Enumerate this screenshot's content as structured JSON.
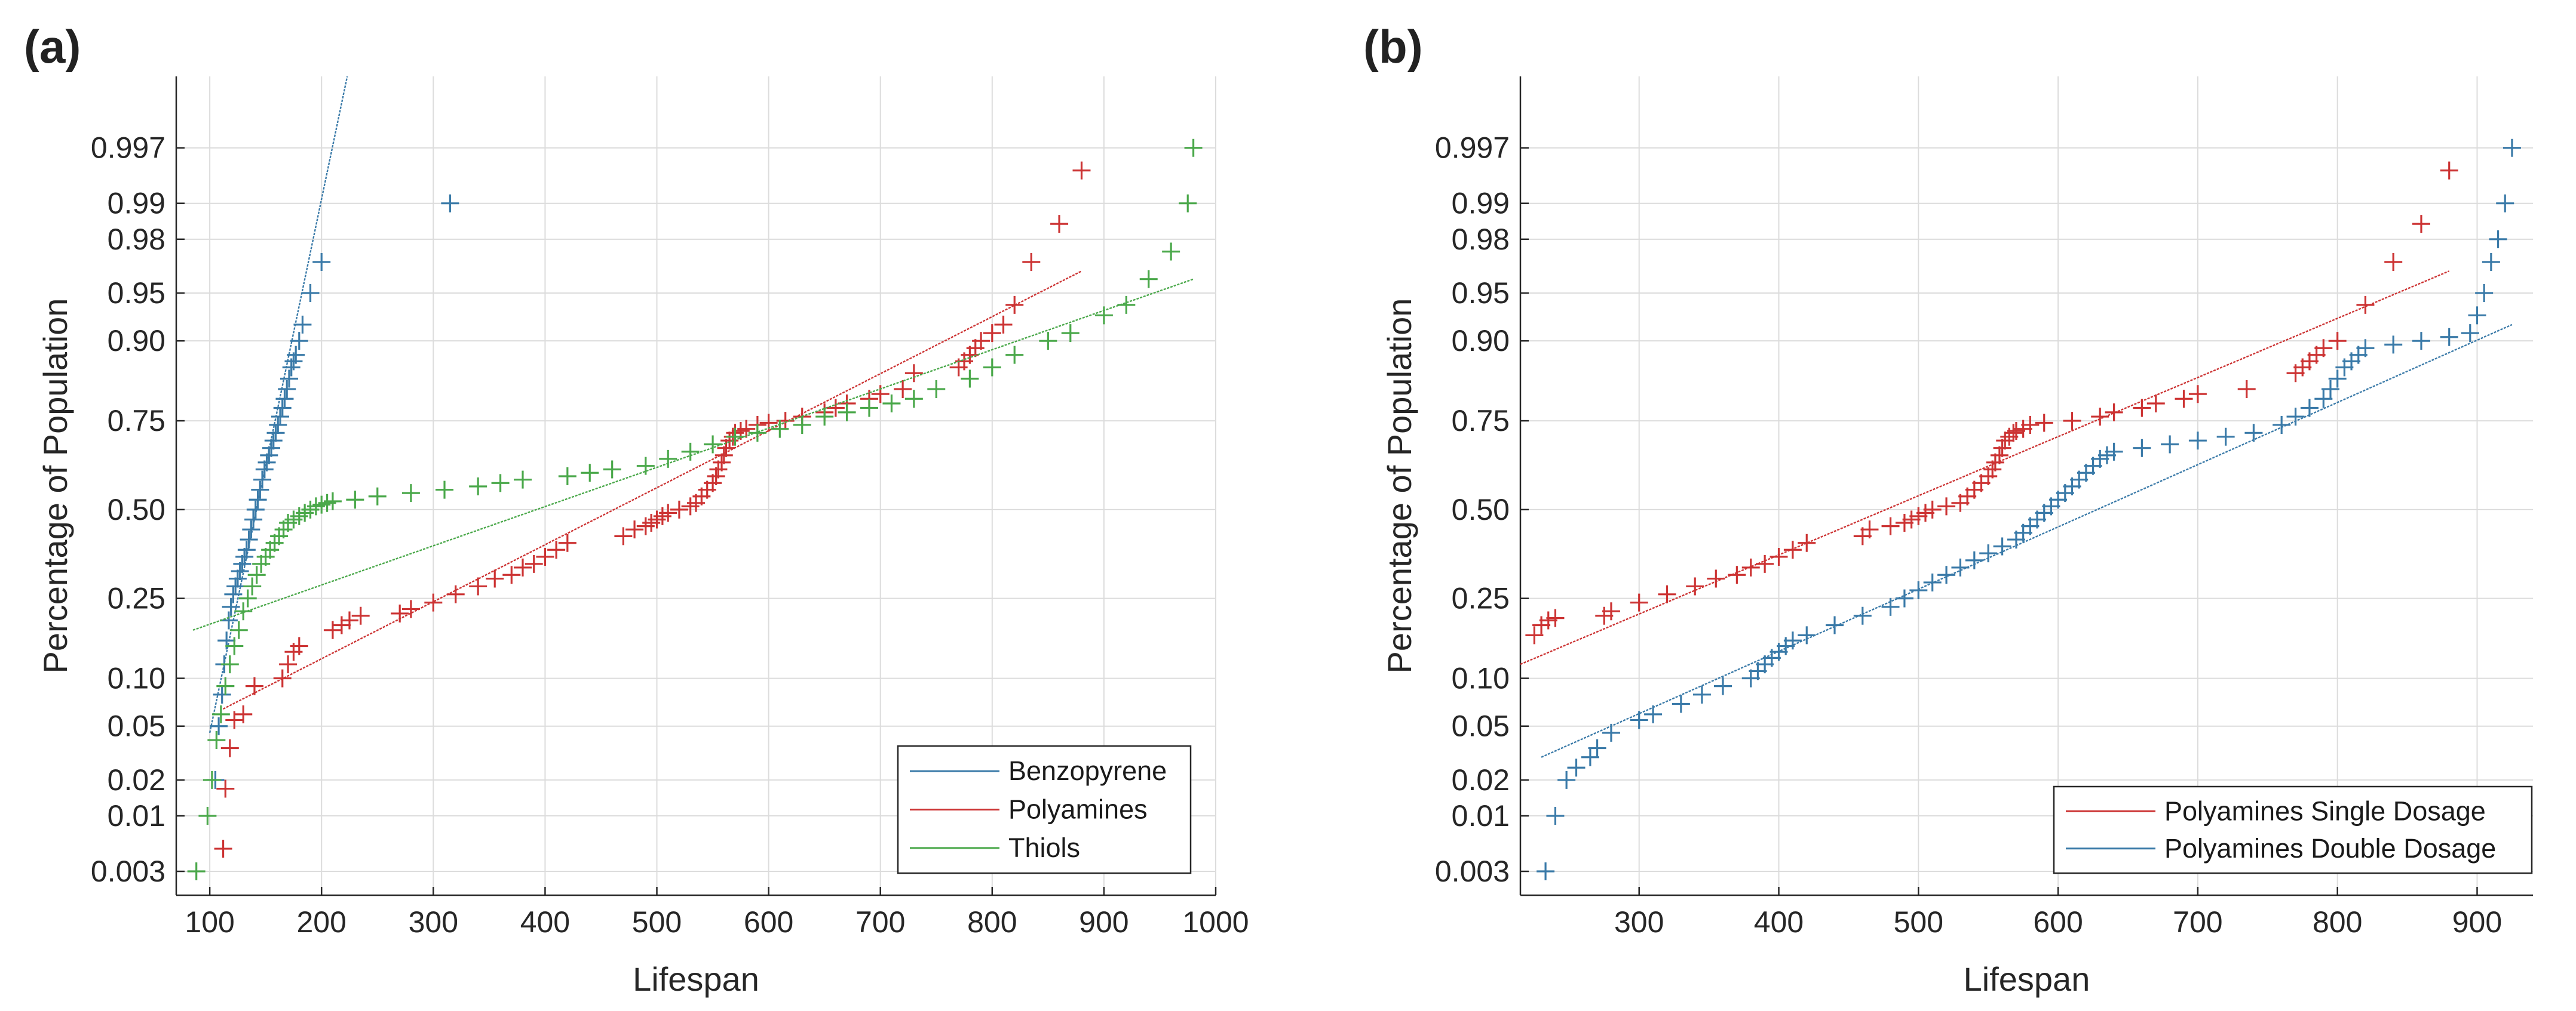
{
  "chart_data": [
    {
      "type": "scatter",
      "panel_label": "(a)",
      "title": "",
      "xlabel": "Lifespan",
      "ylabel": "Percentage of Population",
      "xlim": [
        70,
        1000
      ],
      "x_ticks": [
        100,
        200,
        300,
        400,
        500,
        600,
        700,
        800,
        900,
        1000
      ],
      "x_tick_labels": [
        "100",
        "200",
        "300",
        "400",
        "500",
        "600",
        "700",
        "800",
        "900",
        "1000"
      ],
      "y_scale": "normal-probability",
      "y_ticks": [
        0.003,
        0.01,
        0.02,
        0.05,
        0.1,
        0.25,
        0.5,
        0.75,
        0.9,
        0.95,
        0.98,
        0.99,
        0.997
      ],
      "y_tick_labels": [
        "0.003",
        "0.01",
        "0.02",
        "0.05",
        "0.10",
        "0.25",
        "0.50",
        "0.75",
        "0.90",
        "0.95",
        "0.98",
        "0.99",
        "0.997"
      ],
      "grid": true,
      "legend_position": "bottom-right",
      "series": [
        {
          "name": "Benzopyrene",
          "color": "#3a7aa8",
          "fit_line": {
            "x": [
              100,
              223
            ],
            "p": [
              0.045,
              0.9995
            ]
          },
          "x": [
            105,
            108,
            111,
            113,
            115,
            117,
            119,
            121,
            123,
            125,
            127,
            129,
            131,
            133,
            135,
            137,
            139,
            141,
            143,
            145,
            147,
            149,
            151,
            153,
            155,
            157,
            159,
            161,
            163,
            165,
            167,
            169,
            171,
            173,
            175,
            177,
            180,
            183,
            190,
            200,
            315
          ],
          "p": [
            0.02,
            0.05,
            0.08,
            0.12,
            0.16,
            0.2,
            0.23,
            0.26,
            0.28,
            0.3,
            0.32,
            0.34,
            0.36,
            0.38,
            0.41,
            0.44,
            0.47,
            0.5,
            0.53,
            0.56,
            0.59,
            0.62,
            0.64,
            0.66,
            0.68,
            0.7,
            0.72,
            0.74,
            0.76,
            0.78,
            0.8,
            0.82,
            0.84,
            0.86,
            0.87,
            0.88,
            0.9,
            0.92,
            0.95,
            0.97,
            0.99
          ]
        },
        {
          "name": "Polyamines",
          "color": "#cc3333",
          "fit_line": {
            "x": [
              112,
              880
            ],
            "p": [
              0.065,
              0.965
            ]
          },
          "x": [
            112,
            114,
            118,
            122,
            130,
            140,
            165,
            170,
            175,
            180,
            210,
            218,
            225,
            235,
            270,
            280,
            300,
            320,
            340,
            355,
            370,
            380,
            390,
            400,
            410,
            420,
            470,
            480,
            490,
            495,
            500,
            505,
            510,
            520,
            530,
            535,
            540,
            545,
            550,
            553,
            555,
            558,
            560,
            562,
            565,
            568,
            570,
            575,
            580,
            590,
            600,
            615,
            630,
            650,
            660,
            670,
            690,
            700,
            720,
            730,
            770,
            775,
            780,
            785,
            790,
            800,
            810,
            820,
            835,
            860,
            880
          ],
          "p": [
            0.005,
            0.017,
            0.035,
            0.055,
            0.06,
            0.09,
            0.1,
            0.12,
            0.14,
            0.15,
            0.18,
            0.19,
            0.2,
            0.21,
            0.215,
            0.225,
            0.24,
            0.26,
            0.28,
            0.3,
            0.31,
            0.33,
            0.34,
            0.36,
            0.38,
            0.4,
            0.42,
            0.44,
            0.45,
            0.46,
            0.47,
            0.48,
            0.49,
            0.5,
            0.51,
            0.52,
            0.54,
            0.56,
            0.58,
            0.6,
            0.62,
            0.64,
            0.66,
            0.68,
            0.7,
            0.71,
            0.72,
            0.725,
            0.73,
            0.74,
            0.745,
            0.75,
            0.76,
            0.77,
            0.78,
            0.79,
            0.8,
            0.81,
            0.82,
            0.85,
            0.86,
            0.87,
            0.88,
            0.89,
            0.9,
            0.91,
            0.92,
            0.94,
            0.97,
            0.985,
            0.995
          ]
        },
        {
          "name": "Thiols",
          "color": "#4aa84a",
          "fit_line": {
            "x": [
              85,
              980
            ],
            "p": [
              0.18,
              0.96
            ]
          },
          "x": [
            88,
            98,
            102,
            106,
            110,
            114,
            118,
            122,
            126,
            130,
            134,
            138,
            142,
            146,
            150,
            154,
            158,
            162,
            166,
            170,
            175,
            180,
            185,
            190,
            195,
            200,
            205,
            210,
            230,
            250,
            280,
            310,
            340,
            360,
            380,
            420,
            440,
            460,
            490,
            510,
            530,
            550,
            570,
            590,
            610,
            630,
            650,
            670,
            690,
            710,
            730,
            750,
            780,
            800,
            820,
            850,
            870,
            900,
            920,
            940,
            960,
            975,
            980
          ],
          "p": [
            0.003,
            0.01,
            0.02,
            0.04,
            0.06,
            0.09,
            0.12,
            0.15,
            0.18,
            0.22,
            0.25,
            0.28,
            0.31,
            0.34,
            0.36,
            0.38,
            0.4,
            0.42,
            0.44,
            0.46,
            0.47,
            0.48,
            0.49,
            0.5,
            0.51,
            0.515,
            0.52,
            0.525,
            0.53,
            0.54,
            0.55,
            0.56,
            0.57,
            0.58,
            0.59,
            0.6,
            0.61,
            0.62,
            0.63,
            0.65,
            0.67,
            0.69,
            0.71,
            0.72,
            0.73,
            0.74,
            0.76,
            0.77,
            0.78,
            0.79,
            0.8,
            0.82,
            0.84,
            0.86,
            0.88,
            0.9,
            0.91,
            0.93,
            0.94,
            0.96,
            0.975,
            0.99,
            0.997
          ]
        }
      ]
    },
    {
      "type": "scatter",
      "panel_label": "(b)",
      "title": "",
      "xlabel": "Lifespan",
      "ylabel": "Percentage of Population",
      "xlim": [
        215,
        940
      ],
      "x_ticks": [
        300,
        400,
        500,
        600,
        700,
        800,
        900
      ],
      "x_tick_labels": [
        "300",
        "400",
        "500",
        "600",
        "700",
        "800",
        "900"
      ],
      "y_scale": "normal-probability",
      "y_ticks": [
        0.003,
        0.01,
        0.02,
        0.05,
        0.1,
        0.25,
        0.5,
        0.75,
        0.9,
        0.95,
        0.98,
        0.99,
        0.997
      ],
      "y_tick_labels": [
        "0.003",
        "0.01",
        "0.02",
        "0.05",
        "0.10",
        "0.25",
        "0.50",
        "0.75",
        "0.90",
        "0.95",
        "0.98",
        "0.99",
        "0.997"
      ],
      "grid": true,
      "legend_position": "bottom-right",
      "series": [
        {
          "name": "Polyamines Single Dosage",
          "color": "#cc3333",
          "fit_line": {
            "x": [
              215,
              880
            ],
            "p": [
              0.12,
              0.965
            ]
          },
          "x": [
            225,
            230,
            235,
            240,
            275,
            280,
            300,
            320,
            340,
            355,
            370,
            380,
            390,
            400,
            410,
            420,
            460,
            465,
            480,
            490,
            495,
            500,
            505,
            510,
            520,
            530,
            535,
            540,
            545,
            550,
            553,
            555,
            558,
            560,
            562,
            565,
            568,
            570,
            575,
            580,
            590,
            610,
            630,
            640,
            660,
            670,
            690,
            700,
            735,
            770,
            775,
            780,
            785,
            790,
            800,
            820,
            840,
            860,
            880
          ],
          "p": [
            0.17,
            0.19,
            0.2,
            0.205,
            0.21,
            0.22,
            0.24,
            0.26,
            0.28,
            0.3,
            0.31,
            0.33,
            0.34,
            0.36,
            0.38,
            0.4,
            0.42,
            0.44,
            0.45,
            0.46,
            0.47,
            0.48,
            0.49,
            0.5,
            0.51,
            0.52,
            0.54,
            0.56,
            0.58,
            0.6,
            0.62,
            0.64,
            0.66,
            0.68,
            0.7,
            0.71,
            0.72,
            0.725,
            0.73,
            0.74,
            0.745,
            0.75,
            0.76,
            0.77,
            0.78,
            0.79,
            0.8,
            0.81,
            0.82,
            0.85,
            0.86,
            0.87,
            0.88,
            0.89,
            0.9,
            0.94,
            0.97,
            0.985,
            0.995
          ]
        },
        {
          "name": "Polyamines Double Dosage",
          "color": "#3a7aa8",
          "fit_line": {
            "x": [
              230,
              925
            ],
            "p": [
              0.03,
              0.92
            ]
          },
          "x": [
            233,
            240,
            248,
            255,
            265,
            270,
            280,
            300,
            310,
            330,
            345,
            360,
            380,
            385,
            390,
            395,
            400,
            405,
            410,
            420,
            440,
            460,
            480,
            490,
            500,
            510,
            520,
            530,
            540,
            550,
            560,
            570,
            575,
            580,
            585,
            590,
            595,
            600,
            605,
            610,
            615,
            620,
            625,
            630,
            635,
            640,
            660,
            680,
            700,
            720,
            740,
            760,
            770,
            780,
            790,
            795,
            800,
            805,
            810,
            815,
            820,
            840,
            860,
            880,
            895,
            900,
            905,
            910,
            915,
            920,
            925
          ],
          "p": [
            0.003,
            0.01,
            0.02,
            0.025,
            0.03,
            0.035,
            0.045,
            0.055,
            0.06,
            0.07,
            0.08,
            0.09,
            0.1,
            0.11,
            0.12,
            0.13,
            0.14,
            0.15,
            0.16,
            0.17,
            0.19,
            0.21,
            0.23,
            0.25,
            0.27,
            0.29,
            0.31,
            0.33,
            0.35,
            0.37,
            0.39,
            0.41,
            0.43,
            0.45,
            0.47,
            0.49,
            0.51,
            0.53,
            0.55,
            0.57,
            0.59,
            0.61,
            0.63,
            0.65,
            0.66,
            0.67,
            0.68,
            0.69,
            0.7,
            0.71,
            0.72,
            0.74,
            0.76,
            0.78,
            0.8,
            0.82,
            0.84,
            0.86,
            0.87,
            0.88,
            0.89,
            0.895,
            0.9,
            0.905,
            0.91,
            0.93,
            0.95,
            0.97,
            0.98,
            0.99,
            0.997
          ]
        }
      ]
    }
  ]
}
